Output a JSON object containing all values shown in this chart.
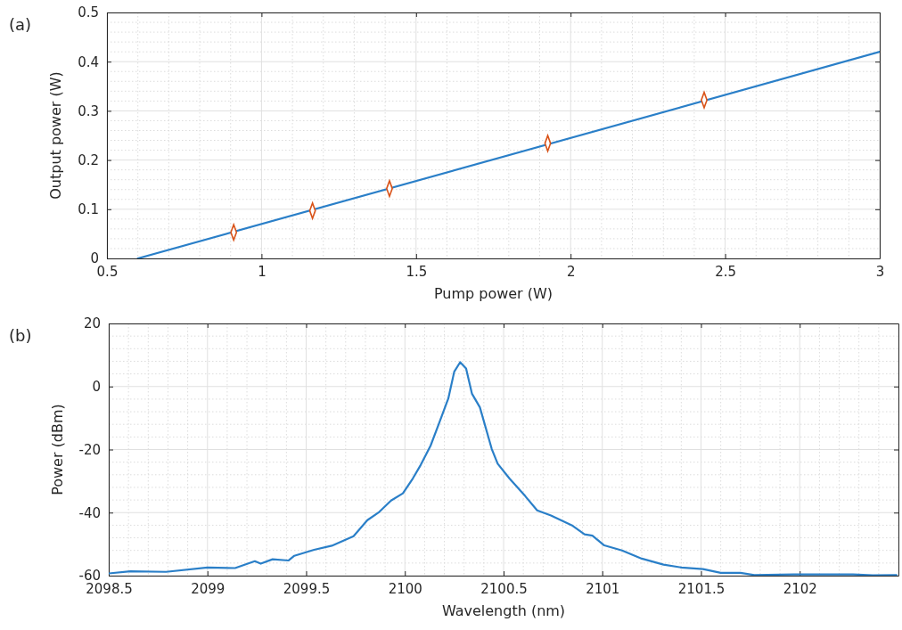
{
  "chart_data": [
    {
      "type": "line",
      "xlabel": "Pump power (W)",
      "ylabel": "Output power (W)",
      "annotations": [
        "(a)"
      ],
      "xlim": [
        0.5,
        3
      ],
      "ylim": [
        0,
        0.5
      ],
      "xticks": [
        0.5,
        1,
        1.5,
        2,
        2.5,
        3
      ],
      "yticks": [
        0,
        0.1,
        0.2,
        0.3,
        0.4,
        0.5
      ],
      "grid": true,
      "series": [
        {
          "color": "#2a7fc8",
          "x": [
            0.6,
            3
          ],
          "values": [
            0,
            0.42
          ],
          "marker": "none",
          "line_style": "solid"
        },
        {
          "type": "scatter",
          "color": "#d95319",
          "x": [
            0.91,
            1.165,
            1.414,
            1.926,
            2.432
          ],
          "values": [
            0.053,
            0.097,
            0.142,
            0.234,
            0.322
          ],
          "marker": "diamond"
        }
      ]
    },
    {
      "type": "line",
      "xlabel": "Wavelength (nm)",
      "ylabel": "Power (dBm)",
      "annotations": [
        "(b)"
      ],
      "xlim": [
        2098.5,
        2102.5
      ],
      "ylim": [
        -60,
        20
      ],
      "xticks": [
        2098.5,
        2099,
        2099.5,
        2100,
        2100.5,
        2101,
        2101.5,
        2102
      ],
      "yticks": [
        -60,
        -40,
        -20,
        0,
        20
      ],
      "grid": true,
      "series": [
        {
          "color": "#2a7fc8",
          "marker": "none",
          "line_style": "solid",
          "x": [
            2098.5,
            2098.61,
            2098.79,
            2099.0,
            2099.14,
            2099.24,
            2099.27,
            2099.33,
            2099.41,
            2099.44,
            2099.54,
            2099.63,
            2099.74,
            2099.81,
            2099.87,
            2099.93,
            2099.99,
            2100.04,
            2100.08,
            2100.13,
            2100.17,
            2100.22,
            2100.25,
            2100.28,
            2100.31,
            2100.34,
            2100.38,
            2100.44,
            2100.47,
            2100.53,
            2100.61,
            2100.67,
            2100.74,
            2100.85,
            2100.91,
            2100.95,
            2101.01,
            2101.1,
            2101.2,
            2101.31,
            2101.4,
            2101.51,
            2101.6,
            2101.7,
            2101.77,
            2101.97,
            2102.27,
            2102.37,
            2102.49
          ],
          "values": [
            -59.3,
            -58.6,
            -58.8,
            -57.4,
            -57.6,
            -55.4,
            -56.2,
            -54.8,
            -55.2,
            -53.7,
            -51.8,
            -50.5,
            -47.5,
            -42.4,
            -39.8,
            -36.2,
            -33.9,
            -29.2,
            -24.9,
            -18.8,
            -12.2,
            -3.8,
            4.7,
            7.7,
            5.7,
            -2.3,
            -6.6,
            -19.8,
            -24.5,
            -29.2,
            -34.8,
            -39.3,
            -40.9,
            -44.2,
            -46.9,
            -47.3,
            -50.4,
            -52,
            -54.6,
            -56.5,
            -57.4,
            -57.9,
            -59.1,
            -59.1,
            -59.8,
            -59.6,
            -59.6,
            -59.9,
            -59.8
          ]
        }
      ]
    }
  ]
}
